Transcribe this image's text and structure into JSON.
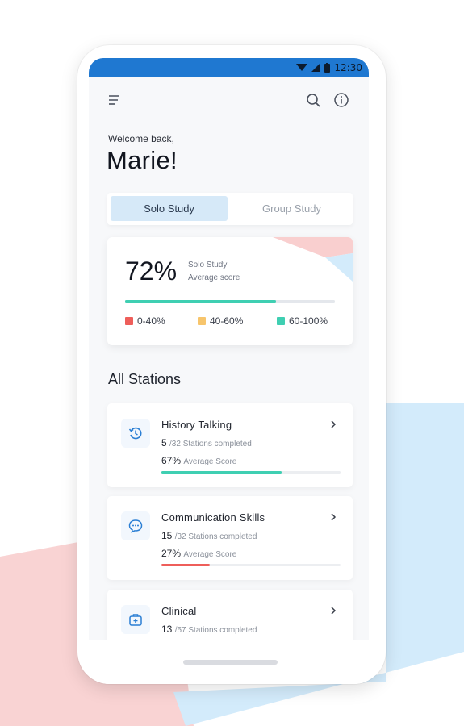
{
  "colors": {
    "accent": "#1f78d1",
    "tab_active_bg": "#d6e9f8",
    "low": "#ee5e5a",
    "mid": "#f7c56c",
    "high": "#3fcfb2",
    "bg_pink": "#f9cfcf",
    "bg_blue": "#d3ebfb"
  },
  "status_bar": {
    "time": "12:30",
    "icons": [
      "wifi-icon",
      "signal-icon",
      "battery-icon"
    ]
  },
  "header": {
    "menu_icon": "menu-icon",
    "search_icon": "search-icon",
    "info_icon": "info-icon"
  },
  "greeting": {
    "welcome": "Welcome back,",
    "name": "Marie!"
  },
  "tabs": [
    {
      "label": "Solo Study",
      "active": true
    },
    {
      "label": "Group Study",
      "active": false
    }
  ],
  "score_card": {
    "percent_text": "72%",
    "percent_value": 72,
    "label_line1": "Solo Study",
    "label_line2": "Average score",
    "legend": [
      {
        "label": "0-40%",
        "color": "#ee5e5a"
      },
      {
        "label": "40-60%",
        "color": "#f7c56c"
      },
      {
        "label": "60-100%",
        "color": "#3fcfb2"
      }
    ]
  },
  "stations_title": "All Stations",
  "stations": [
    {
      "name": "History Talking",
      "completed": "5",
      "total_text": "/32 Stations completed",
      "avg_text": "67%",
      "avg_label": "Average Score",
      "avg_value": 67,
      "bar_color": "#3fcfb2",
      "icon": "history-icon"
    },
    {
      "name": "Communication Skills",
      "completed": "15",
      "total_text": "/32 Stations completed",
      "avg_text": "27%",
      "avg_label": "Average Score",
      "avg_value": 27,
      "bar_color": "#ee5e5a",
      "icon": "chat-icon"
    },
    {
      "name": "Clinical",
      "completed": "13",
      "total_text": "/57 Stations completed",
      "avg_text": "",
      "avg_label": "",
      "avg_value": null,
      "bar_color": "",
      "icon": "medical-kit-icon"
    }
  ]
}
